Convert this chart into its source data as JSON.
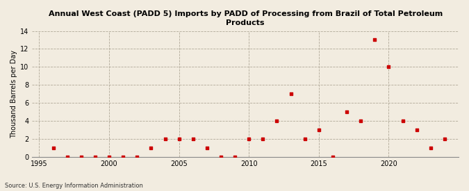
{
  "title": "Annual West Coast (PADD 5) Imports by PADD of Processing from Brazil of Total Petroleum\nProducts",
  "ylabel": "Thousand Barrels per Day",
  "source": "Source: U.S. Energy Information Administration",
  "background_color": "#f2ece0",
  "plot_bg_color": "#f2ece0",
  "marker_color": "#cc0000",
  "marker_size": 12,
  "marker_shape": "s",
  "xlim": [
    1994.5,
    2025
  ],
  "ylim": [
    0,
    14
  ],
  "yticks": [
    0,
    2,
    4,
    6,
    8,
    10,
    12,
    14
  ],
  "xticks": [
    1995,
    2000,
    2005,
    2010,
    2015,
    2020
  ],
  "years": [
    1996,
    1997,
    1998,
    1999,
    2000,
    2001,
    2002,
    2003,
    2004,
    2005,
    2006,
    2007,
    2008,
    2009,
    2010,
    2011,
    2012,
    2013,
    2014,
    2015,
    2016,
    2017,
    2018,
    2019,
    2020,
    2021,
    2022,
    2023,
    2024
  ],
  "values": [
    1,
    0,
    0,
    0,
    0,
    0,
    0,
    1,
    2,
    2,
    2,
    1,
    0,
    0,
    2,
    2,
    4,
    7,
    2,
    3,
    0,
    5,
    4,
    13,
    10,
    4,
    3,
    1,
    2
  ]
}
